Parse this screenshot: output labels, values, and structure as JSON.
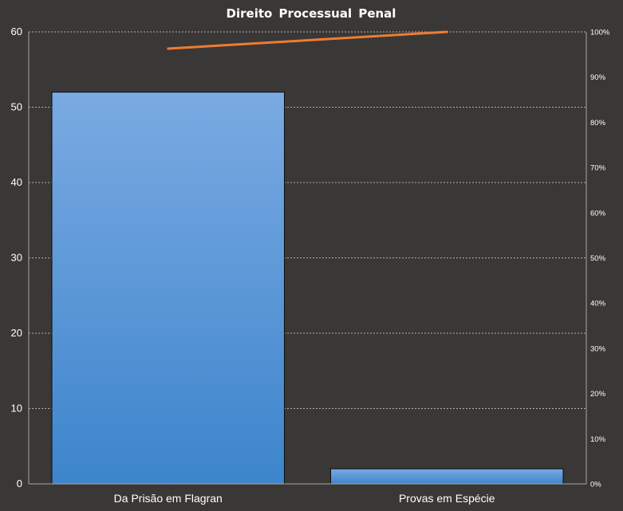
{
  "chart_data": {
    "type": "bar",
    "title": "Direito Processual Penal",
    "categories": [
      "Da Prisão em Flagran",
      "Provas em Espécie"
    ],
    "series": [
      {
        "type": "bar",
        "values": [
          52,
          2
        ]
      },
      {
        "type": "line",
        "axis": "right",
        "values": [
          96.3,
          100
        ]
      }
    ],
    "ylim": [
      0,
      60
    ],
    "yticks": [
      0,
      10,
      20,
      30,
      40,
      50,
      60
    ],
    "y2lim": [
      0,
      100
    ],
    "y2ticks": [
      "0%",
      "10%",
      "20%",
      "30%",
      "40%",
      "50%",
      "60%",
      "70%",
      "80%",
      "90%",
      "100%"
    ],
    "grid": true,
    "colors": {
      "bar": "#5b9bd5",
      "line": "#ed7d31",
      "background": "#3a3836",
      "grid": "#d9d9d9"
    }
  }
}
